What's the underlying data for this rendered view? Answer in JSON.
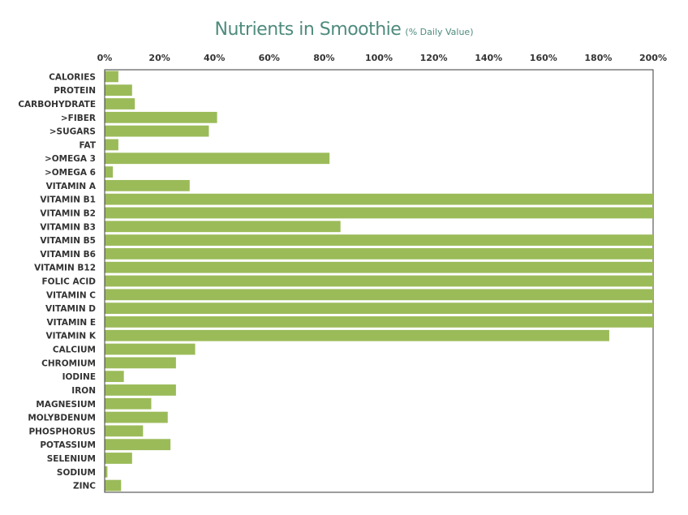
{
  "chart_data": {
    "type": "bar",
    "orientation": "horizontal",
    "title": "Nutrients in Smoothie",
    "subtitle": "(% Daily Value)",
    "xlabel": "",
    "ylabel": "",
    "xlim": [
      0,
      200
    ],
    "xticks": [
      0,
      20,
      40,
      60,
      80,
      100,
      120,
      140,
      160,
      180,
      200
    ],
    "tick_suffix": "%",
    "axis_position": "top",
    "grid": false,
    "bar_color": "#9bbb59",
    "categories": [
      "CALORIES",
      "PROTEIN",
      "CARBOHYDRATE",
      ">FIBER",
      ">SUGARS",
      "FAT",
      ">OMEGA 3",
      ">OMEGA 6",
      "VITAMIN A",
      "VITAMIN B1",
      "VITAMIN B2",
      "VITAMIN B3",
      "VITAMIN B5",
      "VITAMIN B6",
      "VITAMIN B12",
      "FOLIC ACID",
      "VITAMIN C",
      "VITAMIN D",
      "VITAMIN E",
      "VITAMIN K",
      "CALCIUM",
      "CHROMIUM",
      "IODINE",
      "IRON",
      "MAGNESIUM",
      "MOLYBDENUM",
      "PHOSPHORUS",
      "POTASSIUM",
      "SELENIUM",
      "SODIUM",
      "ZINC"
    ],
    "values": [
      5,
      10,
      11,
      41,
      38,
      5,
      82,
      3,
      31,
      200,
      200,
      86,
      200,
      200,
      200,
      200,
      200,
      200,
      200,
      184,
      33,
      26,
      7,
      26,
      17,
      23,
      14,
      24,
      10,
      1,
      6
    ]
  }
}
